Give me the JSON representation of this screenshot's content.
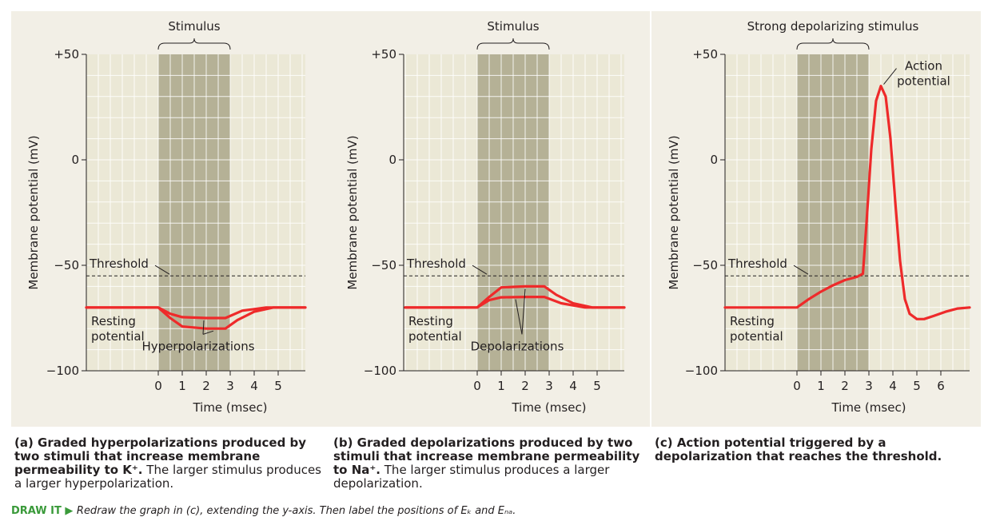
{
  "colors": {
    "panel_bg": "#f2efe6",
    "plot_bg": "#ebe8d6",
    "grid": "#ffffff",
    "stimulus_band": "#b5b196",
    "trace": "#ee2a2a",
    "axis": "#231f20"
  },
  "chart_data": [
    {
      "type": "line",
      "id": "a",
      "ylabel": "Membrane potential (mV)",
      "xlabel": "Time (msec)",
      "ylim": [
        -100,
        50
      ],
      "xlim": [
        -3,
        6.2
      ],
      "yticks": [
        "+50",
        "0",
        "−50",
        "−100"
      ],
      "xticks": [
        "0",
        "1",
        "2",
        "3",
        "4",
        "5"
      ],
      "stimulus": {
        "label": "Stimulus",
        "start": 0,
        "end": 3
      },
      "threshold": {
        "label": "Threshold",
        "value": -55
      },
      "resting_label": [
        "Resting",
        "potential"
      ],
      "response_label": "Hyperpolarizations",
      "series": [
        {
          "x": [
            -3,
            0,
            0.5,
            1,
            2,
            2.8,
            3.5,
            4.5,
            6.2
          ],
          "y": [
            -70,
            -70,
            -73,
            -74.6,
            -75,
            -75,
            -71.5,
            -70,
            -70
          ]
        },
        {
          "x": [
            -3,
            0,
            0.5,
            1,
            2,
            2.8,
            3.3,
            4,
            4.8,
            6.2
          ],
          "y": [
            -70,
            -70,
            -75,
            -79,
            -80,
            -80,
            -76,
            -72,
            -70,
            -70
          ]
        }
      ]
    },
    {
      "type": "line",
      "id": "b",
      "ylabel": "Membrane potential (mV)",
      "xlabel": "Time (msec)",
      "ylim": [
        -100,
        50
      ],
      "xlim": [
        -3,
        6.2
      ],
      "yticks": [
        "+50",
        "0",
        "−50",
        "−100"
      ],
      "xticks": [
        "0",
        "1",
        "2",
        "3",
        "4",
        "5"
      ],
      "stimulus": {
        "label": "Stimulus",
        "start": 0,
        "end": 3
      },
      "threshold": {
        "label": "Threshold",
        "value": -55
      },
      "resting_label": [
        "Resting",
        "potential"
      ],
      "response_label": "Depolarizations",
      "series": [
        {
          "x": [
            -3,
            0,
            0.5,
            1,
            2,
            2.8,
            3.5,
            4.5,
            6.2
          ],
          "y": [
            -70,
            -70,
            -66.5,
            -65.2,
            -65,
            -65,
            -68,
            -70,
            -70
          ]
        },
        {
          "x": [
            -3,
            0,
            0.5,
            1,
            2,
            2.8,
            3.3,
            4,
            4.8,
            6.2
          ],
          "y": [
            -70,
            -70,
            -65,
            -60.5,
            -60,
            -60,
            -64,
            -68,
            -70,
            -70
          ]
        }
      ]
    },
    {
      "type": "line",
      "id": "c",
      "ylabel": "Membrane potential (mV)",
      "xlabel": "Time (msec)",
      "ylim": [
        -100,
        50
      ],
      "xlim": [
        -3,
        7.2
      ],
      "yticks": [
        "+50",
        "0",
        "−50",
        "−100"
      ],
      "xticks": [
        "0",
        "1",
        "2",
        "3",
        "4",
        "5",
        "6"
      ],
      "stimulus": {
        "label": "Strong depolarizing stimulus",
        "start": 0,
        "end": 3
      },
      "threshold": {
        "label": "Threshold",
        "value": -55
      },
      "resting_label": [
        "Resting",
        "potential"
      ],
      "peak_label": [
        "Action",
        "potential"
      ],
      "series": [
        {
          "x": [
            -3,
            0,
            0.5,
            1,
            1.5,
            2,
            2.5,
            2.75,
            2.9,
            3.1,
            3.3,
            3.5,
            3.7,
            3.9,
            4.1,
            4.3,
            4.5,
            4.7,
            5,
            5.3,
            5.7,
            6.2,
            6.7,
            7.2
          ],
          "y": [
            -70,
            -70,
            -66,
            -62.5,
            -59.5,
            -57,
            -55.5,
            -54,
            -30,
            5,
            28,
            35,
            30,
            10,
            -20,
            -48,
            -66,
            -73,
            -75.5,
            -75.5,
            -74,
            -72,
            -70.5,
            -70
          ]
        }
      ]
    }
  ],
  "captions": [
    {
      "letter": "(a)",
      "bold_text": "Graded hyperpolarizations produced by two stimuli that increase membrane permeability to K⁺.",
      "text": " The larger stimulus produces a larger hyperpolarization."
    },
    {
      "letter": "(b)",
      "bold_text": "Graded depolarizations produced by two stimuli that increase membrane permeability to Na⁺.",
      "text": " The larger stimulus produces a larger depolarization."
    },
    {
      "letter": "(c)",
      "bold_text": "Action potential triggered by a depolarization that reaches the threshold.",
      "text": ""
    }
  ],
  "draw_it": {
    "tag": "DRAW IT ▶",
    "text": "Redraw the graph in (c), extending the y-axis. Then label the positions of Eₖ and Eₙₐ."
  }
}
